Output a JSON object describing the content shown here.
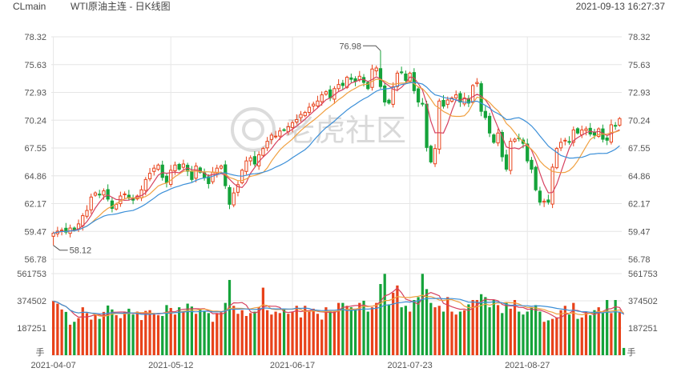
{
  "header": {
    "symbol": "CLmain",
    "title": "WTI原油主连 - 日K线图",
    "timestamp": "2021-09-13 16:27:37"
  },
  "watermark": "老虎社区",
  "colors": {
    "up": "#e8421a",
    "down": "#15a33a",
    "ma_short": "#d6405f",
    "ma_mid": "#f0a040",
    "ma_long": "#3b8fd8",
    "grid": "#e6e6e6"
  },
  "chart_data": [
    {
      "type": "candlestick",
      "title": "WTI原油主连 - 日K线图",
      "price_ticks": [
        "78.32",
        "75.63",
        "72.93",
        "70.24",
        "67.55",
        "64.86",
        "62.17",
        "59.47",
        "56.78"
      ],
      "ylim": [
        56.78,
        78.32
      ],
      "date_ticks": [
        "2021-04-07",
        "2021-05-12",
        "2021-06-17",
        "2021-07-23",
        "2021-08-27"
      ],
      "annotations": [
        {
          "label": "76.98",
          "type": "max"
        },
        {
          "label": "58.12",
          "type": "min"
        }
      ],
      "closes": [
        59.3,
        59.5,
        59.6,
        59.4,
        59.8,
        59.6,
        60.2,
        61.0,
        61.5,
        62.8,
        63.2,
        63.0,
        63.4,
        62.6,
        61.7,
        62.1,
        62.9,
        63.1,
        62.7,
        62.5,
        62.9,
        63.5,
        64.5,
        65.1,
        65.6,
        65.9,
        64.7,
        64.2,
        65.4,
        65.9,
        65.5,
        66.0,
        65.3,
        64.5,
        65.8,
        65.2,
        64.7,
        64.1,
        65.2,
        65.6,
        65.8,
        63.9,
        62.1,
        63.2,
        64.0,
        65.4,
        66.3,
        66.6,
        66.0,
        66.9,
        67.5,
        68.2,
        68.8,
        68.7,
        69.2,
        69.3,
        69.6,
        70.0,
        70.3,
        70.8,
        71.0,
        71.5,
        71.8,
        72.1,
        72.7,
        73.0,
        72.4,
        73.3,
        73.7,
        73.6,
        74.4,
        74.2,
        74.0,
        74.5,
        73.9,
        73.3,
        75.2,
        75.3,
        73.5,
        72.0,
        71.9,
        73.5,
        74.8,
        74.9,
        74.1,
        74.8,
        73.1,
        72.0,
        71.8,
        67.6,
        66.2,
        67.5,
        72.1,
        71.6,
        72.2,
        72.4,
        72.7,
        72.0,
        72.4,
        71.9,
        73.6,
        73.9,
        71.1,
        70.5,
        69.0,
        68.1,
        69.0,
        66.7,
        65.5,
        68.2,
        68.4,
        68.5,
        68.0,
        66.3,
        65.5,
        63.5,
        62.3,
        62.4,
        62.3,
        65.7,
        67.5,
        68.1,
        68.3,
        68.1,
        69.3,
        69.0,
        69.3,
        69.4,
        68.9,
        68.8,
        69.4,
        68.4,
        68.3,
        69.8,
        69.7,
        70.4
      ]
    },
    {
      "type": "bar",
      "title": "volume",
      "ylabel": "手",
      "ticks": [
        "561753",
        "374502",
        "187251"
      ],
      "ylim": [
        0,
        561753
      ],
      "values": [
        373000,
        355000,
        315000,
        298000,
        210000,
        230000,
        255000,
        330000,
        290000,
        245000,
        275000,
        250000,
        298000,
        342000,
        315000,
        276000,
        255000,
        300000,
        320000,
        280000,
        300000,
        242000,
        305000,
        310000,
        282000,
        275000,
        270000,
        345000,
        325000,
        280000,
        330000,
        300000,
        355000,
        335000,
        285000,
        320000,
        305000,
        290000,
        230000,
        290000,
        295000,
        360000,
        518000,
        340000,
        285000,
        310000,
        270000,
        290000,
        300000,
        330000,
        465000,
        310000,
        280000,
        300000,
        290000,
        315000,
        285000,
        300000,
        340000,
        260000,
        340000,
        300000,
        320000,
        285000,
        245000,
        330000,
        300000,
        300000,
        360000,
        360000,
        340000,
        330000,
        320000,
        360000,
        375000,
        300000,
        330000,
        360000,
        490000,
        560000,
        350000,
        430000,
        480000,
        330000,
        340000,
        300000,
        380000,
        400000,
        560000,
        455000,
        360000,
        330000,
        340000,
        300000,
        400000,
        300000,
        280000,
        300000,
        310000,
        350000,
        380000,
        380000,
        420000,
        400000,
        330000,
        380000,
        345000,
        290000,
        360000,
        320000,
        380000,
        300000,
        280000,
        300000,
        330000,
        345000,
        300000,
        230000,
        240000,
        250000,
        260000,
        310000,
        340000,
        280000,
        360000,
        250000,
        260000,
        300000,
        275000,
        310000,
        330000,
        290000,
        380000,
        290000,
        380000,
        300000,
        50000
      ]
    }
  ]
}
